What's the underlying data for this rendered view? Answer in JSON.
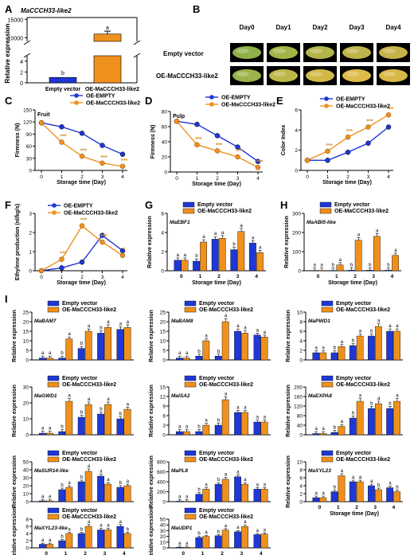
{
  "colors": {
    "empty": "#1f37d6",
    "oe": "#f0901c",
    "axis": "#000000",
    "star": "#d98d1e"
  },
  "legend": {
    "empty_vector": "Empty vector",
    "oe_like2": "OE-MaCCCH33-like2",
    "oe_empty": "OE-EMPTY"
  },
  "axis_labels": {
    "relative_expression": "Relative expression",
    "firmness": "Firmness (N)",
    "color_index": "Color Index",
    "ethylene": "Ethylene production (nl/kg/s)",
    "storage_time": "Storage time (Day)"
  },
  "panelA": {
    "letter": "A",
    "title": "MaCCCH33-like2",
    "categories": [
      "Empty vector",
      "OE-MaCCCH33-like2"
    ],
    "values": [
      1,
      11000
    ],
    "errors": [
      0.1,
      800
    ],
    "sig": [
      "b",
      "a"
    ],
    "low_ticks": [
      "0",
      "2",
      "4"
    ],
    "high_ticks": [
      "10000",
      "15000"
    ]
  },
  "panelB": {
    "letter": "B",
    "days": [
      "Day0",
      "Day1",
      "Day2",
      "Day3",
      "Day4"
    ],
    "rows": [
      "Empty vector",
      "OE-MaCCCH33-like2"
    ],
    "peel_colors": [
      [
        "#8fb04a",
        "#a3b549",
        "#b3b548",
        "#bfb449",
        "#c7b24a"
      ],
      [
        "#9cb34b",
        "#bdb74a",
        "#d2b847",
        "#dcbb49",
        "#d9b747"
      ]
    ]
  },
  "chart_data": [
    {
      "panel": "C",
      "type": "line",
      "inset": "Fruit",
      "x": [
        0,
        1,
        2,
        3,
        4
      ],
      "ylim": [
        0,
        150
      ],
      "yticks": [
        0,
        30,
        60,
        90,
        120,
        150
      ],
      "series": [
        {
          "name": "OE-EMPTY",
          "values": [
            118,
            108,
            92,
            62,
            40
          ]
        },
        {
          "name": "OE-MaCCCH33-like2",
          "values": [
            118,
            70,
            35,
            18,
            10
          ],
          "stars": [
            "",
            "***",
            "***",
            "***",
            "***"
          ]
        }
      ]
    },
    {
      "panel": "D",
      "type": "line",
      "inset": "Pulp",
      "x": [
        0,
        1,
        2,
        3,
        4
      ],
      "ylim": [
        0,
        80
      ],
      "yticks": [
        0,
        20,
        40,
        60,
        80
      ],
      "series": [
        {
          "name": "OE-EMPTY",
          "values": [
            67,
            63,
            48,
            33,
            14
          ]
        },
        {
          "name": "OE-MaCCCH33-like2",
          "values": [
            67,
            36,
            28,
            20,
            6
          ],
          "stars": [
            "",
            "***",
            "***",
            "***",
            "***"
          ]
        }
      ]
    },
    {
      "panel": "E",
      "type": "line",
      "x": [
        0,
        1,
        2,
        3,
        4
      ],
      "ylim": [
        0,
        6
      ],
      "yticks": [
        0,
        2,
        4,
        6
      ],
      "series": [
        {
          "name": "OE-EMPTY",
          "values": [
            1,
            1,
            1.8,
            2.7,
            4.3
          ]
        },
        {
          "name": "OE-MaCCCH33-like2",
          "values": [
            1,
            1.9,
            3.3,
            4.3,
            5.5
          ],
          "stars": [
            "",
            "***",
            "***",
            "***",
            "***"
          ]
        }
      ]
    },
    {
      "panel": "F",
      "type": "line",
      "x": [
        0,
        1,
        2,
        3,
        4
      ],
      "ylim": [
        0,
        3
      ],
      "yticks": [
        0,
        1,
        2,
        3
      ],
      "series": [
        {
          "name": "OE-EMPTY",
          "values": [
            0,
            0.15,
            0.45,
            1.85,
            1.05
          ]
        },
        {
          "name": "OE-MaCCCH33-like2",
          "values": [
            0,
            0.6,
            2.35,
            1.5,
            0.8
          ],
          "stars": [
            "",
            "***",
            "***",
            "***",
            "*"
          ]
        }
      ]
    },
    {
      "panel": "G",
      "type": "bar",
      "gene": "MaEBF1",
      "legend_pos": "top",
      "categories": [
        "0",
        "1",
        "2",
        "3",
        "4"
      ],
      "ylim": [
        0,
        6
      ],
      "yticks": [
        0,
        2,
        4,
        6
      ],
      "series": [
        {
          "name": "Empty vector",
          "values": [
            1.1,
            1.0,
            3.3,
            2.2,
            2.9
          ],
          "sig": [
            "a",
            "b",
            "a",
            "b",
            "a"
          ]
        },
        {
          "name": "OE-MaCCCH33-like2",
          "values": [
            1.1,
            3.0,
            3.4,
            4.1,
            1.9
          ],
          "sig": [
            "a",
            "a",
            "a",
            "a",
            "a"
          ]
        }
      ]
    },
    {
      "panel": "H",
      "type": "bar",
      "gene": "MaABI5-like",
      "legend_pos": "top",
      "categories": [
        "0",
        "1",
        "2",
        "3",
        "4"
      ],
      "ylim": [
        0,
        300
      ],
      "yticks": [
        0,
        100,
        200,
        300
      ],
      "series": [
        {
          "name": "Empty vector",
          "values": [
            2,
            2,
            3,
            3,
            3
          ],
          "sig": [
            "a",
            "b",
            "b",
            "b",
            "b"
          ]
        },
        {
          "name": "OE-MaCCCH33-like2",
          "values": [
            2,
            30,
            160,
            180,
            80
          ],
          "sig": [
            "a",
            "a",
            "a",
            "a",
            "a"
          ]
        }
      ]
    },
    {
      "panel": "I1",
      "type": "bar",
      "gene": "MaBAM7",
      "categories": [
        "0",
        "1",
        "2",
        "3",
        "4"
      ],
      "ylim": [
        0,
        25
      ],
      "yticks": [
        0,
        5,
        10,
        15,
        20,
        25
      ],
      "series": [
        {
          "name": "Empty vector",
          "values": [
            1,
            1,
            6,
            14,
            16
          ],
          "sig": [
            "a",
            "b",
            "b",
            "b",
            "a"
          ]
        },
        {
          "name": "OE-MaCCCH33-like2",
          "values": [
            1,
            11,
            15,
            17,
            17
          ],
          "sig": [
            "a",
            "a",
            "a",
            "a",
            "a"
          ]
        }
      ]
    },
    {
      "panel": "I2",
      "type": "bar",
      "gene": "MaBAM8",
      "categories": [
        "0",
        "1",
        "2",
        "3",
        "4"
      ],
      "ylim": [
        0,
        25
      ],
      "yticks": [
        0,
        5,
        10,
        15,
        20,
        25
      ],
      "series": [
        {
          "name": "Empty vector",
          "values": [
            1,
            2,
            2,
            15,
            13
          ],
          "sig": [
            "a",
            "b",
            "b",
            "a",
            "a"
          ]
        },
        {
          "name": "OE-MaCCCH33-like2",
          "values": [
            1,
            10,
            20,
            14,
            12
          ],
          "sig": [
            "a",
            "a",
            "a",
            "a",
            "a"
          ]
        }
      ]
    },
    {
      "panel": "I3",
      "type": "bar",
      "gene": "MaPWD1",
      "categories": [
        "0",
        "1",
        "2",
        "3",
        "4"
      ],
      "ylim": [
        0,
        10
      ],
      "yticks": [
        0,
        2,
        4,
        6,
        8,
        10
      ],
      "series": [
        {
          "name": "Empty vector",
          "values": [
            1.5,
            1.5,
            3,
            5,
            6
          ],
          "sig": [
            "a",
            "b",
            "b",
            "b",
            "a"
          ]
        },
        {
          "name": "OE-MaCCCH33-like2",
          "values": [
            1.5,
            2.8,
            5,
            7,
            6
          ],
          "sig": [
            "a",
            "a",
            "a",
            "a",
            "a"
          ]
        }
      ]
    },
    {
      "panel": "I4",
      "type": "bar",
      "gene": "MaGWD1",
      "categories": [
        "0",
        "1",
        "2",
        "3",
        "4"
      ],
      "ylim": [
        0,
        30
      ],
      "yticks": [
        0,
        10,
        20,
        30
      ],
      "series": [
        {
          "name": "Empty vector",
          "values": [
            1,
            2,
            11,
            13,
            10
          ],
          "sig": [
            "a",
            "b",
            "b",
            "b",
            "b"
          ]
        },
        {
          "name": "OE-MaCCCH33-like2",
          "values": [
            1,
            21,
            19,
            19,
            16
          ],
          "sig": [
            "a",
            "a",
            "a",
            "a",
            "a"
          ]
        }
      ]
    },
    {
      "panel": "I5",
      "type": "bar",
      "gene": "MaISA2",
      "categories": [
        "0",
        "1",
        "2",
        "3",
        "4"
      ],
      "ylim": [
        0,
        15
      ],
      "yticks": [
        0,
        3,
        6,
        9,
        12,
        15
      ],
      "series": [
        {
          "name": "Empty vector",
          "values": [
            1,
            1,
            3,
            7,
            4
          ],
          "sig": [
            "a",
            "b",
            "b",
            "a",
            "a"
          ]
        },
        {
          "name": "OE-MaCCCH33-like2",
          "values": [
            1,
            3,
            11,
            7,
            4
          ],
          "sig": [
            "a",
            "a",
            "a",
            "a",
            "a"
          ]
        }
      ]
    },
    {
      "panel": "I6",
      "type": "bar",
      "gene": "MaEXPA8",
      "categories": [
        "0",
        "1",
        "2",
        "3",
        "4"
      ],
      "ylim": [
        0,
        200
      ],
      "yticks": [
        0,
        40,
        80,
        120,
        160,
        200
      ],
      "series": [
        {
          "name": "Empty vector",
          "values": [
            5,
            10,
            70,
            110,
            110
          ],
          "sig": [
            "a",
            "b",
            "b",
            "b",
            "b"
          ]
        },
        {
          "name": "OE-MaCCCH33-like2",
          "values": [
            5,
            35,
            140,
            130,
            140
          ],
          "sig": [
            "a",
            "a",
            "a",
            "a",
            "a"
          ]
        }
      ]
    },
    {
      "panel": "I7",
      "type": "bar",
      "gene": "MaSUR14-like",
      "categories": [
        "0",
        "1",
        "2",
        "3",
        "4"
      ],
      "ylim": [
        0,
        50
      ],
      "yticks": [
        0,
        10,
        20,
        30,
        40,
        50
      ],
      "series": [
        {
          "name": "Empty vector",
          "values": [
            1,
            15,
            25,
            32,
            18
          ],
          "sig": [
            "a",
            "b",
            "b",
            "a",
            "b"
          ]
        },
        {
          "name": "OE-MaCCCH33-like2",
          "values": [
            1,
            18,
            38,
            22,
            20
          ],
          "sig": [
            "a",
            "a",
            "a",
            "a",
            "a"
          ]
        }
      ]
    },
    {
      "panel": "I8",
      "type": "bar",
      "gene": "MaPL8",
      "categories": [
        "0",
        "1",
        "2",
        "3",
        "4"
      ],
      "ylim": [
        0,
        800
      ],
      "yticks": [
        0,
        200,
        400,
        600,
        800
      ],
      "series": [
        {
          "name": "Empty vector",
          "values": [
            10,
            150,
            350,
            500,
            250
          ],
          "sig": [
            "a",
            "b",
            "b",
            "a",
            "a"
          ]
        },
        {
          "name": "OE-MaCCCH33-like2",
          "values": [
            10,
            250,
            450,
            350,
            250
          ],
          "sig": [
            "a",
            "a",
            "a",
            "a",
            "a"
          ]
        }
      ]
    },
    {
      "panel": "I9",
      "type": "bar",
      "gene": "MaXYL23",
      "categories": [
        "0",
        "1",
        "2",
        "3",
        "4"
      ],
      "ylim": [
        0,
        10
      ],
      "yticks": [
        0,
        2,
        4,
        6,
        8,
        10
      ],
      "series": [
        {
          "name": "Empty vector",
          "values": [
            1,
            2.5,
            5,
            4,
            3.5
          ],
          "sig": [
            "a",
            "b",
            "a",
            "a",
            "a"
          ]
        },
        {
          "name": "OE-MaCCCH33-like2",
          "values": [
            1,
            6.5,
            5,
            3,
            2.5
          ],
          "sig": [
            "a",
            "a",
            "a",
            "b",
            "b"
          ]
        }
      ]
    },
    {
      "panel": "I10",
      "type": "bar",
      "gene": "MaXYL23-like",
      "categories": [
        "0",
        "1",
        "2",
        "3",
        "4"
      ],
      "ylim": [
        0,
        8
      ],
      "yticks": [
        0,
        2,
        4,
        6,
        8
      ],
      "series": [
        {
          "name": "Empty vector",
          "values": [
            1,
            2,
            4,
            5,
            6
          ],
          "sig": [
            "a",
            "b",
            "b",
            "a",
            "a"
          ]
        },
        {
          "name": "OE-MaCCCH33-like2",
          "values": [
            1,
            4,
            6,
            5,
            4
          ],
          "sig": [
            "a",
            "a",
            "a",
            "a",
            "b"
          ]
        }
      ]
    },
    {
      "panel": "I11",
      "type": "bar",
      "gene": "MaUDP1",
      "categories": [
        "0",
        "1",
        "2",
        "3",
        "4"
      ],
      "ylim": [
        0,
        50
      ],
      "yticks": [
        0,
        10,
        20,
        30,
        40,
        50
      ],
      "series": [
        {
          "name": "Empty vector",
          "values": [
            1,
            18,
            21,
            28,
            23
          ],
          "sig": [
            "a",
            "b",
            "b",
            "a",
            "a"
          ]
        },
        {
          "name": "OE-MaCCCH33-like2",
          "values": [
            1,
            20,
            31,
            37,
            24
          ],
          "sig": [
            "a",
            "a",
            "a",
            "a",
            "a"
          ]
        }
      ]
    }
  ]
}
